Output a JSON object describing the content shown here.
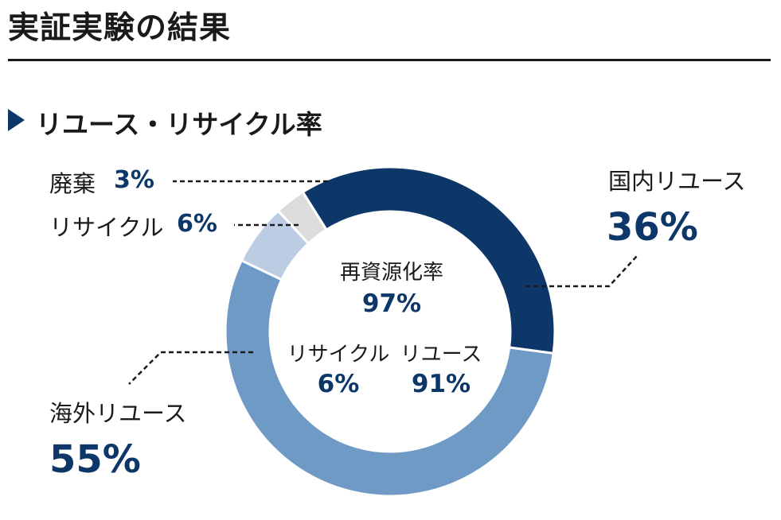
{
  "header": {
    "title": "実証実験の結果",
    "section_title": "リユース・リサイクル率"
  },
  "chart_data": {
    "type": "pie",
    "variant": "donut",
    "title": "リユース・リサイクル率",
    "slices": [
      {
        "label": "国内リユース",
        "value": 36,
        "value_label": "36%",
        "color": "#0d3669"
      },
      {
        "label": "海外リユース",
        "value": 55,
        "value_label": "55%",
        "color": "#6f9ac6"
      },
      {
        "label": "リサイクル",
        "value": 6,
        "value_label": "6%",
        "color": "#bccde3"
      },
      {
        "label": "廃棄",
        "value": 3,
        "value_label": "3%",
        "color": "#dcdcdc"
      }
    ],
    "center": {
      "title": "再資源化率",
      "total_label": "97%",
      "breakdown": [
        {
          "label": "リサイクル",
          "value_label": "6%"
        },
        {
          "label": "リユース",
          "value_label": "91%"
        }
      ]
    }
  }
}
